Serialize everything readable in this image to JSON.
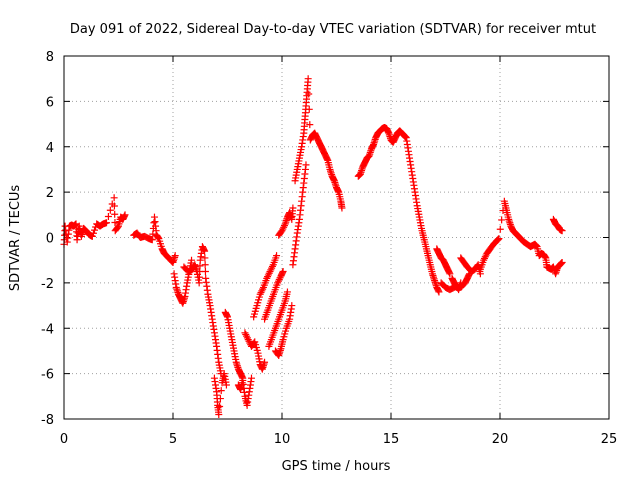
{
  "chart_data": {
    "type": "scatter",
    "title": "Day 091 of 2022, Sidereal Day-to-day VTEC variation (SDTVAR) for receiver mtut",
    "xlabel": "GPS time / hours",
    "ylabel": "SDTVAR / TECUs",
    "xlim": [
      0,
      25
    ],
    "ylim": [
      -8,
      8
    ],
    "xticks": [
      0,
      5,
      10,
      15,
      20,
      25
    ],
    "yticks": [
      -8,
      -6,
      -4,
      -2,
      0,
      2,
      4,
      6,
      8
    ],
    "xtick_labels": [
      "0",
      "5",
      "10",
      "15",
      "20",
      "25"
    ],
    "ytick_labels": [
      "-8",
      "-6",
      "-4",
      "-2",
      "0",
      "2",
      "4",
      "6",
      "8"
    ],
    "grid": true,
    "marker": "+",
    "color": "#ff0000",
    "series": [
      {
        "name": "SDTVAR",
        "points": [
          [
            0.0,
            -0.3
          ],
          [
            0.05,
            0.5
          ],
          [
            0.15,
            -0.2
          ],
          [
            0.25,
            0.5
          ],
          [
            0.35,
            0.55
          ],
          [
            0.45,
            0.5
          ],
          [
            0.55,
            0.6
          ],
          [
            0.6,
            -0.1
          ],
          [
            0.7,
            0.5
          ],
          [
            0.8,
            0.05
          ],
          [
            0.9,
            0.4
          ],
          [
            1.0,
            0.3
          ],
          [
            1.1,
            0.2
          ],
          [
            1.2,
            0.1
          ],
          [
            1.3,
            0.05
          ],
          [
            1.5,
            0.6
          ],
          [
            1.65,
            0.5
          ],
          [
            1.8,
            0.6
          ],
          [
            1.95,
            0.65
          ],
          [
            2.3,
            1.75
          ],
          [
            2.35,
            0.3
          ],
          [
            2.5,
            0.5
          ],
          [
            2.6,
            0.9
          ],
          [
            2.7,
            0.8
          ],
          [
            2.8,
            1.0
          ],
          [
            3.2,
            0.1
          ],
          [
            3.35,
            0.2
          ],
          [
            3.5,
            0.0
          ],
          [
            3.7,
            0.05
          ],
          [
            3.9,
            -0.05
          ],
          [
            4.05,
            -0.1
          ],
          [
            4.15,
            0.9
          ],
          [
            4.25,
            0.1
          ],
          [
            4.35,
            -0.05
          ],
          [
            4.5,
            -0.5
          ],
          [
            4.6,
            -0.7
          ],
          [
            4.75,
            -0.85
          ],
          [
            4.9,
            -1.0
          ],
          [
            5.0,
            -1.1
          ],
          [
            5.1,
            -0.8
          ],
          [
            5.05,
            -1.6
          ],
          [
            5.15,
            -2.2
          ],
          [
            5.25,
            -2.5
          ],
          [
            5.35,
            -2.7
          ],
          [
            5.45,
            -2.9
          ],
          [
            5.55,
            -2.6
          ],
          [
            5.65,
            -2.0
          ],
          [
            5.75,
            -1.5
          ],
          [
            5.85,
            -1.0
          ],
          [
            5.5,
            -1.3
          ],
          [
            5.7,
            -1.5
          ],
          [
            5.9,
            -1.4
          ],
          [
            6.0,
            -1.2
          ],
          [
            6.1,
            -1.5
          ],
          [
            6.2,
            -2.0
          ],
          [
            6.25,
            -1.0
          ],
          [
            6.35,
            -0.4
          ],
          [
            6.45,
            -0.6
          ],
          [
            6.5,
            -1.8
          ],
          [
            6.6,
            -2.5
          ],
          [
            6.7,
            -3.0
          ],
          [
            6.8,
            -3.6
          ],
          [
            6.9,
            -4.2
          ],
          [
            7.0,
            -4.8
          ],
          [
            7.1,
            -5.5
          ],
          [
            7.2,
            -6.0
          ],
          [
            6.9,
            -6.2
          ],
          [
            7.0,
            -6.8
          ],
          [
            7.05,
            -7.4
          ],
          [
            7.1,
            -7.8
          ],
          [
            7.25,
            -6.4
          ],
          [
            7.35,
            -6.0
          ],
          [
            7.45,
            -6.5
          ],
          [
            7.4,
            -3.3
          ],
          [
            7.5,
            -3.5
          ],
          [
            7.6,
            -4.0
          ],
          [
            7.7,
            -4.5
          ],
          [
            7.8,
            -5.0
          ],
          [
            7.9,
            -5.5
          ],
          [
            8.0,
            -5.8
          ],
          [
            8.1,
            -6.0
          ],
          [
            8.2,
            -6.2
          ],
          [
            8.0,
            -6.5
          ],
          [
            8.1,
            -6.7
          ],
          [
            8.2,
            -6.3
          ],
          [
            8.3,
            -7.0
          ],
          [
            8.4,
            -7.4
          ],
          [
            8.5,
            -6.8
          ],
          [
            8.6,
            -6.2
          ],
          [
            8.3,
            -4.2
          ],
          [
            8.45,
            -4.5
          ],
          [
            8.6,
            -4.8
          ],
          [
            8.75,
            -4.6
          ],
          [
            8.9,
            -5.1
          ],
          [
            9.0,
            -5.6
          ],
          [
            9.1,
            -5.8
          ],
          [
            9.2,
            -5.5
          ],
          [
            8.7,
            -3.5
          ],
          [
            8.85,
            -3.0
          ],
          [
            9.0,
            -2.5
          ],
          [
            9.15,
            -2.2
          ],
          [
            9.3,
            -1.8
          ],
          [
            9.45,
            -1.5
          ],
          [
            9.6,
            -1.2
          ],
          [
            9.75,
            -0.8
          ],
          [
            9.2,
            -3.6
          ],
          [
            9.35,
            -3.2
          ],
          [
            9.5,
            -2.8
          ],
          [
            9.65,
            -2.4
          ],
          [
            9.8,
            -2.0
          ],
          [
            9.95,
            -1.7
          ],
          [
            10.05,
            -1.5
          ],
          [
            9.4,
            -4.8
          ],
          [
            9.55,
            -4.4
          ],
          [
            9.7,
            -4.0
          ],
          [
            9.85,
            -3.6
          ],
          [
            10.0,
            -3.2
          ],
          [
            10.15,
            -2.8
          ],
          [
            10.25,
            -2.4
          ],
          [
            9.7,
            -5.0
          ],
          [
            9.85,
            -5.2
          ],
          [
            9.95,
            -4.9
          ],
          [
            10.05,
            -4.5
          ],
          [
            10.2,
            -4.0
          ],
          [
            10.35,
            -3.6
          ],
          [
            10.45,
            -3.0
          ],
          [
            9.85,
            0.1
          ],
          [
            10.0,
            0.3
          ],
          [
            10.15,
            0.6
          ],
          [
            10.25,
            0.9
          ],
          [
            10.35,
            1.1
          ],
          [
            10.45,
            0.8
          ],
          [
            10.5,
            1.3
          ],
          [
            10.5,
            -1.2
          ],
          [
            10.6,
            -0.5
          ],
          [
            10.7,
            0.2
          ],
          [
            10.8,
            0.8
          ],
          [
            10.9,
            1.6
          ],
          [
            11.0,
            2.4
          ],
          [
            11.1,
            3.2
          ],
          [
            10.6,
            2.5
          ],
          [
            10.7,
            3.0
          ],
          [
            10.8,
            3.5
          ],
          [
            10.9,
            4.0
          ],
          [
            11.0,
            4.6
          ],
          [
            11.05,
            5.2
          ],
          [
            11.1,
            5.8
          ],
          [
            11.15,
            6.4
          ],
          [
            11.2,
            7.0
          ],
          [
            11.3,
            4.3
          ],
          [
            11.4,
            4.5
          ],
          [
            11.5,
            4.6
          ],
          [
            11.6,
            4.4
          ],
          [
            11.7,
            4.2
          ],
          [
            11.8,
            4.0
          ],
          [
            11.9,
            3.8
          ],
          [
            12.0,
            3.6
          ],
          [
            12.1,
            3.4
          ],
          [
            12.2,
            3.0
          ],
          [
            12.3,
            2.7
          ],
          [
            12.4,
            2.5
          ],
          [
            12.5,
            2.2
          ],
          [
            12.6,
            2.0
          ],
          [
            12.7,
            1.6
          ],
          [
            12.75,
            1.3
          ],
          [
            13.5,
            2.7
          ],
          [
            13.6,
            2.8
          ],
          [
            13.7,
            3.1
          ],
          [
            13.8,
            3.3
          ],
          [
            13.9,
            3.5
          ],
          [
            14.0,
            3.6
          ],
          [
            14.1,
            3.9
          ],
          [
            14.2,
            4.1
          ],
          [
            14.3,
            4.4
          ],
          [
            14.4,
            4.6
          ],
          [
            14.5,
            4.7
          ],
          [
            14.6,
            4.8
          ],
          [
            14.7,
            4.85
          ],
          [
            14.8,
            4.8
          ],
          [
            14.9,
            4.6
          ],
          [
            15.0,
            4.3
          ],
          [
            15.1,
            4.2
          ],
          [
            15.2,
            4.4
          ],
          [
            15.3,
            4.6
          ],
          [
            15.4,
            4.7
          ],
          [
            15.5,
            4.6
          ],
          [
            15.6,
            4.5
          ],
          [
            15.7,
            4.4
          ],
          [
            15.8,
            3.8
          ],
          [
            15.9,
            3.2
          ],
          [
            16.0,
            2.6
          ],
          [
            16.1,
            2.0
          ],
          [
            16.2,
            1.4
          ],
          [
            16.3,
            0.9
          ],
          [
            16.4,
            0.4
          ],
          [
            16.5,
            0.0
          ],
          [
            16.6,
            -0.4
          ],
          [
            16.7,
            -0.8
          ],
          [
            16.8,
            -1.2
          ],
          [
            16.9,
            -1.6
          ],
          [
            17.0,
            -1.9
          ],
          [
            17.1,
            -2.2
          ],
          [
            17.2,
            -2.4
          ],
          [
            17.1,
            -0.5
          ],
          [
            17.2,
            -0.7
          ],
          [
            17.3,
            -0.9
          ],
          [
            17.4,
            -1.0
          ],
          [
            17.5,
            -1.2
          ],
          [
            17.6,
            -1.4
          ],
          [
            17.7,
            -1.6
          ],
          [
            17.3,
            -2.0
          ],
          [
            17.5,
            -2.2
          ],
          [
            17.7,
            -2.3
          ],
          [
            17.9,
            -2.2
          ],
          [
            18.0,
            -2.1
          ],
          [
            18.1,
            -2.3
          ],
          [
            18.2,
            -2.0
          ],
          [
            17.8,
            -1.8
          ],
          [
            17.9,
            -2.0
          ],
          [
            18.0,
            -2.2
          ],
          [
            18.2,
            -2.2
          ],
          [
            18.4,
            -2.0
          ],
          [
            18.5,
            -1.8
          ],
          [
            18.6,
            -1.6
          ],
          [
            18.2,
            -0.9
          ],
          [
            18.35,
            -1.1
          ],
          [
            18.5,
            -1.3
          ],
          [
            18.7,
            -1.5
          ],
          [
            18.85,
            -1.4
          ],
          [
            19.0,
            -1.2
          ],
          [
            19.1,
            -1.6
          ],
          [
            19.1,
            -1.4
          ],
          [
            19.25,
            -1.0
          ],
          [
            19.4,
            -0.7
          ],
          [
            19.55,
            -0.5
          ],
          [
            19.7,
            -0.3
          ],
          [
            19.85,
            -0.15
          ],
          [
            19.95,
            -0.05
          ],
          [
            20.2,
            1.6
          ],
          [
            20.3,
            1.2
          ],
          [
            20.4,
            0.8
          ],
          [
            20.5,
            0.5
          ],
          [
            20.6,
            0.3
          ],
          [
            20.7,
            0.2
          ],
          [
            20.8,
            0.1
          ],
          [
            20.9,
            0.0
          ],
          [
            21.0,
            -0.1
          ],
          [
            21.1,
            -0.2
          ],
          [
            21.25,
            -0.3
          ],
          [
            21.4,
            -0.4
          ],
          [
            21.5,
            -0.35
          ],
          [
            21.6,
            -0.3
          ],
          [
            21.7,
            -0.4
          ],
          [
            21.8,
            -0.8
          ],
          [
            21.9,
            -0.7
          ],
          [
            22.0,
            -0.75
          ],
          [
            22.1,
            -0.9
          ],
          [
            22.15,
            -1.3
          ],
          [
            22.25,
            -1.35
          ],
          [
            22.35,
            -1.4
          ],
          [
            22.45,
            -1.3
          ],
          [
            22.55,
            -1.6
          ],
          [
            22.65,
            -1.3
          ],
          [
            22.75,
            -1.2
          ],
          [
            22.85,
            -1.1
          ],
          [
            22.45,
            0.8
          ],
          [
            22.55,
            0.6
          ],
          [
            22.65,
            0.5
          ],
          [
            22.75,
            0.35
          ],
          [
            22.85,
            0.3
          ]
        ]
      }
    ]
  }
}
